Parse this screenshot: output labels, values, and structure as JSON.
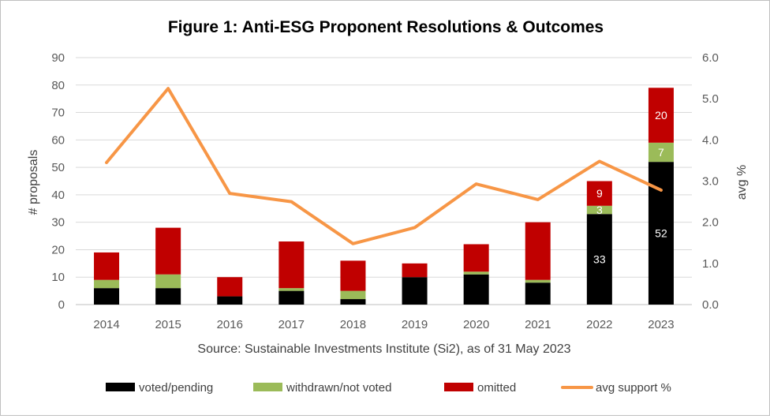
{
  "chart_data": {
    "type": "bar",
    "subtype": "stacked-bar-with-secondary-line",
    "title": "Figure 1: Anti-ESG Proponent Resolutions & Outcomes",
    "source": "Source:  Sustainable Investments Institute (Si2), as of 31 May 2023",
    "categories": [
      "2014",
      "2015",
      "2016",
      "2017",
      "2018",
      "2019",
      "2020",
      "2021",
      "2022",
      "2023"
    ],
    "ylabel": "# proposals",
    "y2label": "avg %",
    "ylim": [
      0,
      90
    ],
    "yticks": [
      "0",
      "10",
      "20",
      "30",
      "40",
      "50",
      "60",
      "70",
      "80",
      "90"
    ],
    "y2lim": [
      0,
      6
    ],
    "y2ticks": [
      "0.0",
      "1.0",
      "2.0",
      "3.0",
      "4.0",
      "5.0",
      "6.0"
    ],
    "grid": true,
    "legend_position": "bottom",
    "series": [
      {
        "name": "voted/pending",
        "axis": "left",
        "kind": "bar",
        "color": "#000000",
        "values": [
          6,
          6,
          3,
          5,
          2,
          10,
          11,
          8,
          33,
          52
        ],
        "labels": [
          "",
          "",
          "",
          "",
          "",
          "",
          "",
          "",
          "33",
          "52"
        ],
        "label_color": "#ffffff"
      },
      {
        "name": "withdrawn/not voted",
        "axis": "left",
        "kind": "bar",
        "color": "#9bbb59",
        "values": [
          3,
          5,
          0,
          1,
          3,
          0,
          1,
          1,
          3,
          7
        ],
        "labels": [
          "",
          "",
          "",
          "",
          "",
          "",
          "",
          "",
          "3",
          "7"
        ],
        "label_color": "#ffffff"
      },
      {
        "name": "omitted",
        "axis": "left",
        "kind": "bar",
        "color": "#c00000",
        "values": [
          10,
          17,
          7,
          17,
          11,
          5,
          10,
          21,
          9,
          20
        ],
        "labels": [
          "",
          "",
          "",
          "",
          "",
          "",
          "",
          "",
          "9",
          "20"
        ],
        "label_color": "#ffffff"
      },
      {
        "name": "avg support %",
        "axis": "right",
        "kind": "line",
        "color": "#f79646",
        "values": [
          3.45,
          5.25,
          2.7,
          2.5,
          1.48,
          1.87,
          2.93,
          2.55,
          3.48,
          2.78
        ]
      }
    ]
  }
}
